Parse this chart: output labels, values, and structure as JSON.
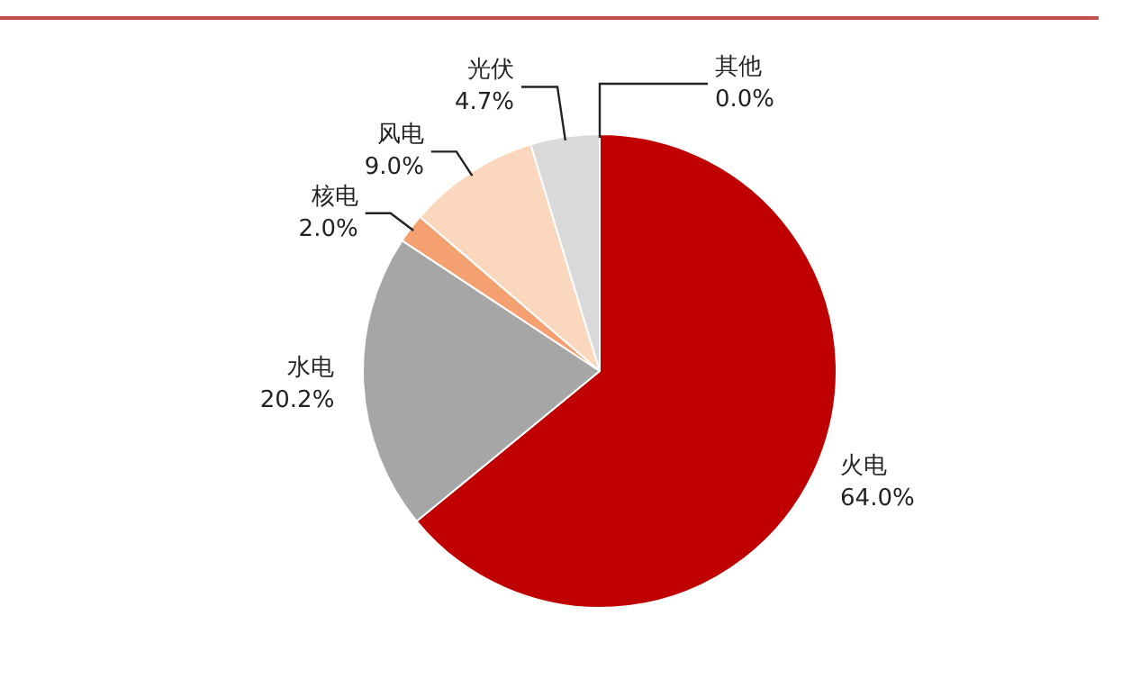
{
  "chart_data": {
    "type": "pie",
    "categories": [
      "火电",
      "水电",
      "核电",
      "风电",
      "光伏",
      "其他"
    ],
    "values": [
      64.0,
      20.2,
      2.0,
      9.0,
      4.7,
      0.0
    ],
    "value_labels": [
      "64.0%",
      "20.2%",
      "2.0%",
      "9.0%",
      "4.7%",
      "0.0%"
    ],
    "colors": [
      "#c00000",
      "#a6a6a6",
      "#f4a070",
      "#fbd8bd",
      "#d9d9d9",
      "#bfbfbf"
    ],
    "legend": false
  }
}
